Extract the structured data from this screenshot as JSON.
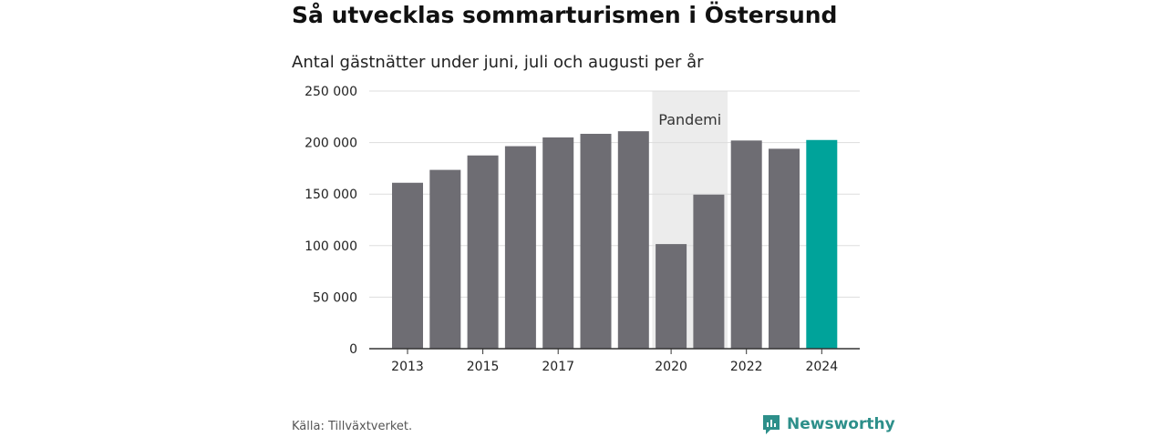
{
  "chart_data": {
    "type": "bar",
    "title": "Så utvecklas sommarturismen i Östersund",
    "subtitle": "Antal gästnätter under juni, juli och augusti per år",
    "categories": [
      "2013",
      "2014",
      "2015",
      "2016",
      "2017",
      "2018",
      "2019",
      "2020",
      "2021",
      "2022",
      "2023",
      "2024"
    ],
    "x_tick_labels": [
      "2013",
      "",
      "2015",
      "",
      "2017",
      "",
      "",
      "2020",
      "",
      "2022",
      "",
      "2024"
    ],
    "values": [
      161000,
      173500,
      187500,
      196500,
      205000,
      208500,
      211000,
      101500,
      149500,
      202000,
      194000,
      202500
    ],
    "ylim": [
      0,
      250000
    ],
    "y_ticks": [
      0,
      50000,
      100000,
      150000,
      200000,
      250000
    ],
    "y_tick_labels": [
      "0",
      "50 000",
      "100 000",
      "150 000",
      "200 000",
      "250 000"
    ],
    "grid": true,
    "colors": {
      "bar": "#6e6d73",
      "highlight": "#00a39a",
      "band": "#ececec",
      "grid": "#dddddd",
      "axis": "#333333"
    },
    "highlight_category": "2024",
    "annotation": {
      "label": "Pandemi",
      "from": "2020",
      "to": "2021"
    }
  },
  "source": "Källa: Tillväxtverket.",
  "logo": {
    "text": "Newsworthy",
    "icon": "newsworthy-logo-icon",
    "color": "#2d8f8a"
  }
}
